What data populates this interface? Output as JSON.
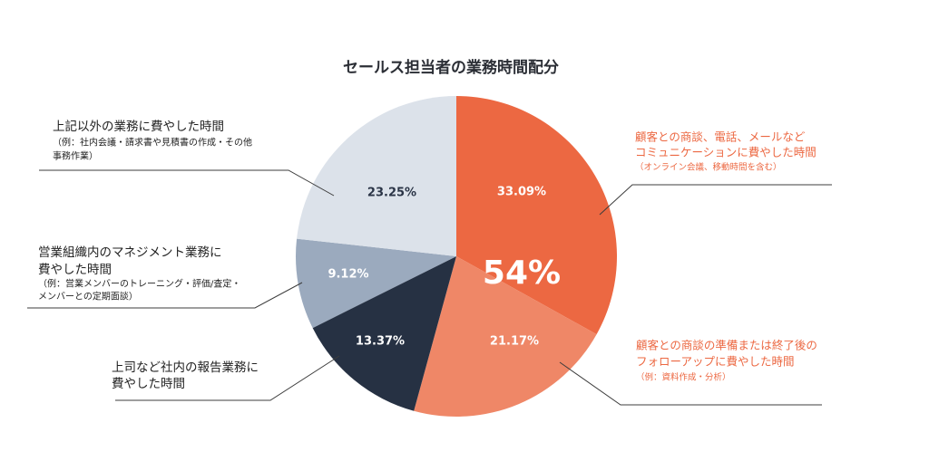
{
  "chart_data": {
    "type": "pie",
    "title": "セールス担当者の業務時間配分",
    "values": [
      33.09,
      21.17,
      13.37,
      9.12,
      23.25
    ],
    "data_labels": [
      "33.09%",
      "21.17%",
      "13.37%",
      "9.12%",
      "23.25%"
    ],
    "colors": [
      "#EC6842",
      "#EF8767",
      "#263143",
      "#9BAABE",
      "#DCE2EA"
    ],
    "label_colors": [
      "#FFFFFF",
      "#FFFFFF",
      "#FFFFFF",
      "#FFFFFF",
      "#2A3446"
    ],
    "highlight_label": "54%",
    "highlight_color": "#FFFFFF",
    "annotations": [
      {
        "color": "#EC6842",
        "lines": [
          "顧客との商談、電話、メールなど",
          "コミュニケーションに費やした時間"
        ],
        "notes": [
          "（オンライン会議、移動時間を含む）"
        ]
      },
      {
        "color": "#EC6842",
        "lines": [
          "顧客との商談の準備または終了後の",
          "フォローアップに費やした時間"
        ],
        "notes": [
          "（例：資料作成・分析）"
        ]
      },
      {
        "color": "#222222",
        "lines": [
          "上司など社内の報告業務に",
          "費やした時間"
        ],
        "notes": []
      },
      {
        "color": "#222222",
        "lines": [
          "営業組織内のマネジメント業務に",
          "費やした時間"
        ],
        "notes": [
          "（例：営業メンバーのトレーニング・評価/査定・",
          "メンバーとの定期面談）"
        ]
      },
      {
        "color": "#222222",
        "lines": [
          "上記以外の業務に費やした時間"
        ],
        "notes": [
          "（例：社内会議・請求書や見積書の作成・その他",
          "事務作業）"
        ]
      }
    ]
  }
}
